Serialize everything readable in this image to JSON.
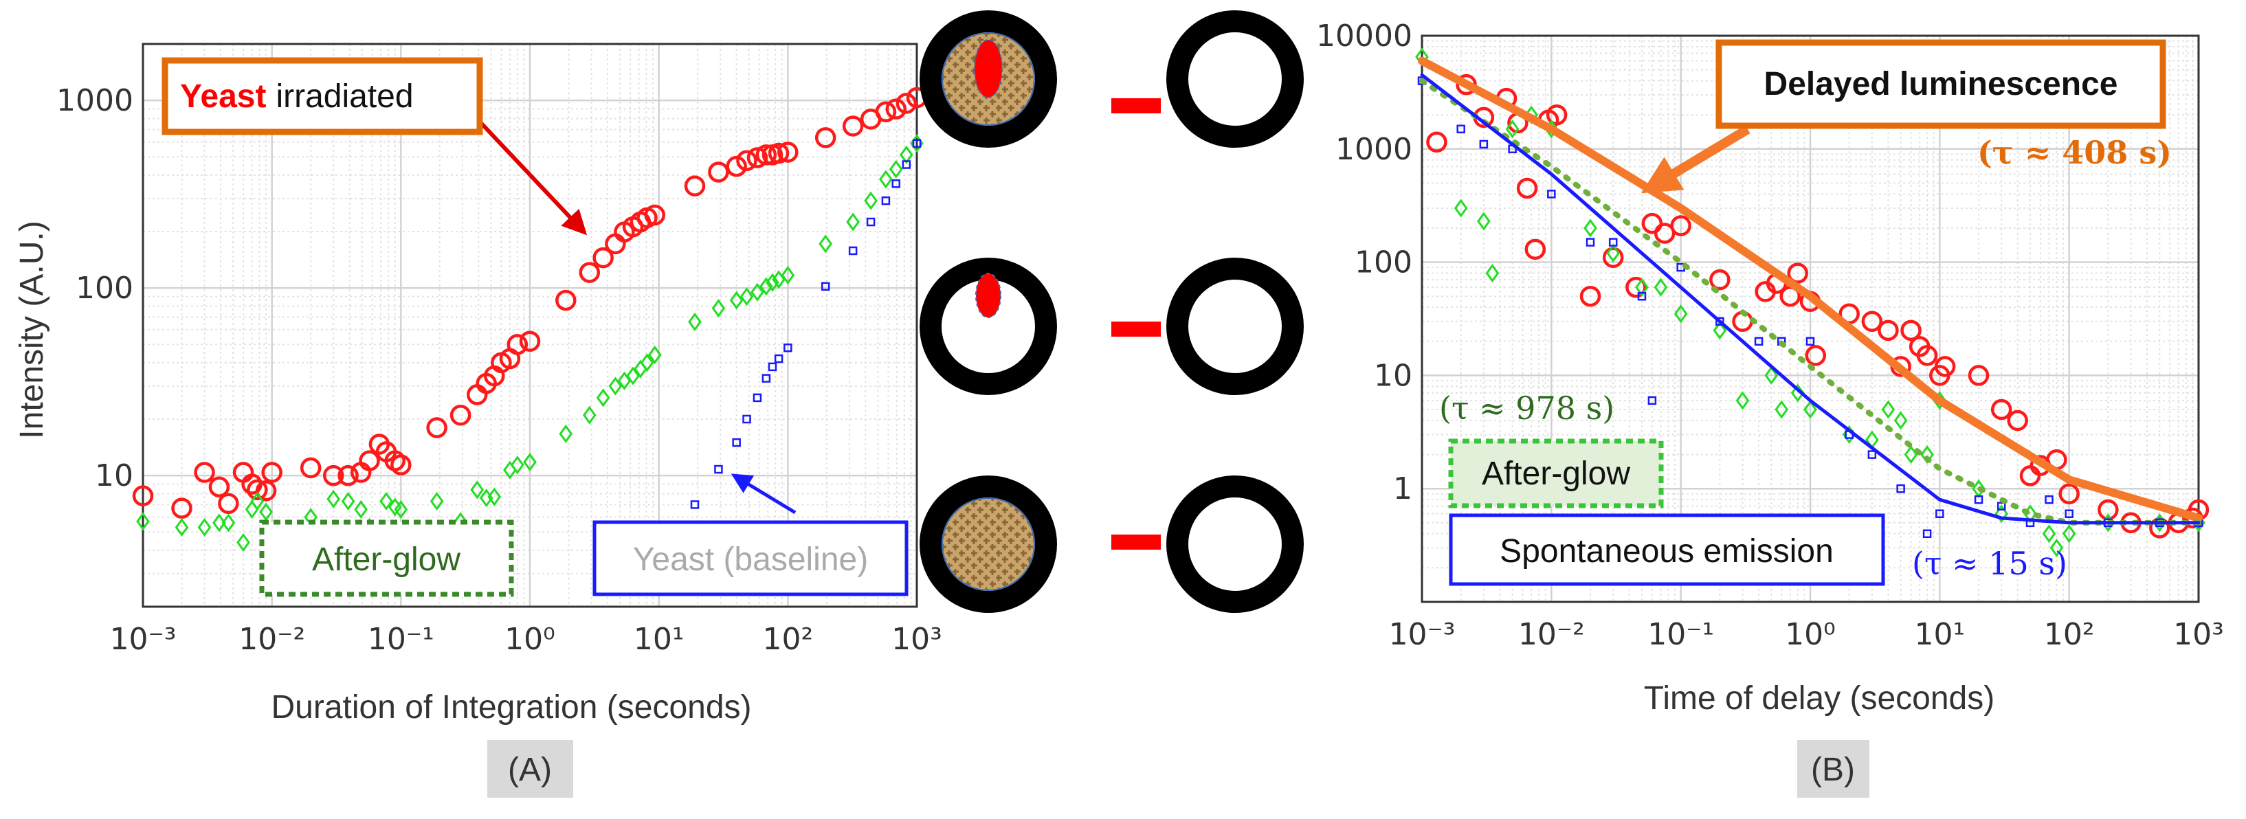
{
  "chart_data": [
    {
      "type": "scatter",
      "ylabel": "Intensity (A.U.)",
      "xlabel": "Duration of Integration (seconds)",
      "panel_label": "(A)",
      "xscale": "log",
      "yscale": "log",
      "grid": true,
      "minor_grid": true,
      "xlim": [
        0.001,
        1000
      ],
      "ylim": [
        2,
        2000
      ],
      "xticks": [
        {
          "value": 0.001,
          "label": "10⁻³"
        },
        {
          "value": 0.01,
          "label": "10⁻²"
        },
        {
          "value": 0.1,
          "label": "10⁻¹"
        },
        {
          "value": 1,
          "label": "10⁰"
        },
        {
          "value": 10,
          "label": "10¹"
        },
        {
          "value": 100,
          "label": "10²"
        },
        {
          "value": 1000,
          "label": "10³"
        }
      ],
      "yticks": [
        10,
        100,
        1000
      ],
      "annotations": {
        "irradiated_bold": "Yeast",
        "irradiated": "irradiated",
        "after_glow": "After-glow",
        "baseline": "Yeast (baseline)"
      },
      "series": [
        {
          "color": "#ff1a1a",
          "marker": "circle",
          "x": [
            0.001,
            0.002,
            0.003,
            0.0039,
            0.0046,
            0.006,
            0.007,
            0.0077,
            0.009,
            0.01,
            0.02,
            0.03,
            0.039,
            0.049,
            0.057,
            0.068,
            0.077,
            0.09,
            0.1,
            0.19,
            0.29,
            0.39,
            0.46,
            0.53,
            0.6,
            0.7,
            0.8,
            1.0,
            1.9,
            2.9,
            3.7,
            4.6,
            5.4,
            6.3,
            7.2,
            8.1,
            9.3,
            19,
            29,
            40,
            48,
            58,
            68,
            76,
            85,
            100,
            196,
            320,
            440,
            575,
            690,
            830,
            1000
          ],
          "values": [
            7.8,
            6.7,
            10.4,
            8.7,
            7.1,
            10.4,
            9,
            8.4,
            8.3,
            10.4,
            11,
            10,
            10,
            10.4,
            12,
            14.7,
            13.4,
            12,
            11.4,
            18,
            21,
            27,
            31,
            34,
            40,
            42,
            50,
            52,
            86,
            121,
            145,
            172,
            199,
            212,
            225,
            237,
            245,
            350,
            415,
            445,
            478,
            495,
            513,
            513,
            523,
            530,
            633,
            730,
            795,
            870,
            900,
            965,
            1035
          ]
        },
        {
          "color": "#22dd22",
          "marker": "diamond",
          "x": [
            0.001,
            0.002,
            0.003,
            0.0039,
            0.0046,
            0.006,
            0.007,
            0.0077,
            0.009,
            0.02,
            0.03,
            0.039,
            0.049,
            0.057,
            0.077,
            0.09,
            0.1,
            0.19,
            0.29,
            0.39,
            0.46,
            0.53,
            0.7,
            0.8,
            1,
            1.9,
            2.9,
            3.7,
            4.6,
            5.4,
            6.3,
            7.2,
            8.1,
            9.3,
            19,
            29,
            40,
            48,
            58,
            68,
            76,
            85,
            100,
            196,
            320,
            440,
            575,
            690,
            830,
            1000
          ],
          "values": [
            5.7,
            5.3,
            5.3,
            5.6,
            5.6,
            4.4,
            6.6,
            7.3,
            6.4,
            6,
            7.5,
            7.3,
            6.6,
            5.3,
            7.3,
            6.8,
            6.6,
            7.3,
            5.7,
            8.4,
            7.6,
            7.7,
            10.7,
            11.4,
            11.8,
            16.7,
            21,
            26,
            30,
            32,
            34,
            37,
            40,
            44,
            66,
            78,
            86,
            90,
            95,
            102,
            107,
            111,
            117,
            172,
            225,
            292,
            380,
            430,
            513,
            590
          ]
        },
        {
          "color": "#1a1aff",
          "marker": "square",
          "x": [
            19,
            29,
            40,
            48,
            58,
            68,
            76,
            85,
            100,
            196,
            320,
            440,
            575,
            690,
            830,
            1000
          ],
          "values": [
            7,
            10.8,
            15,
            20,
            26,
            33,
            38,
            42,
            48,
            102,
            158,
            225,
            292,
            360,
            455,
            590
          ]
        }
      ]
    },
    {
      "type": "scatter",
      "xlabel": "Time of delay (seconds)",
      "panel_label": "(B)",
      "xscale": "log",
      "yscale": "log",
      "grid": true,
      "minor_grid": true,
      "xlim": [
        0.001,
        1000
      ],
      "ylim": [
        0.1,
        10000
      ],
      "xticks": [
        {
          "value": 0.001,
          "label": "10⁻³"
        },
        {
          "value": 0.01,
          "label": "10⁻²"
        },
        {
          "value": 0.1,
          "label": "10⁻¹"
        },
        {
          "value": 1,
          "label": "10⁰"
        },
        {
          "value": 10,
          "label": "10¹"
        },
        {
          "value": 100,
          "label": "10²"
        },
        {
          "value": 1000,
          "label": "10³"
        }
      ],
      "yticks": [
        1,
        10,
        100,
        1000,
        10000
      ],
      "annotations": {
        "delayed": "Delayed luminescence",
        "tau_delayed": "(τ ≈ 408 s)",
        "tau_after": "(τ ≈ 978 s)",
        "after_glow": "After-glow",
        "spontaneous": "Spontaneous emission",
        "tau_spont": "(τ ≈ 15 s)"
      },
      "series": [
        {
          "color": "#ff1a1a",
          "marker": "circle",
          "x": [
            0.0013,
            0.0022,
            0.003,
            0.0045,
            0.0055,
            0.0065,
            0.0075,
            0.0095,
            0.011,
            0.02,
            0.03,
            0.045,
            0.06,
            0.075,
            0.1,
            0.2,
            0.3,
            0.45,
            0.55,
            0.7,
            0.8,
            1.0,
            1.1,
            2,
            3,
            4,
            5,
            6,
            7,
            8,
            10,
            11,
            20,
            30,
            40,
            50,
            60,
            80,
            100,
            200,
            300,
            500,
            700,
            900,
            1000
          ],
          "values": [
            1150,
            3700,
            1900,
            2800,
            1700,
            450,
            130,
            1800,
            2000,
            50,
            110,
            60,
            220,
            180,
            210,
            70,
            30,
            55,
            65,
            50,
            80,
            45,
            15,
            35,
            30,
            25,
            12,
            25,
            18,
            15,
            10,
            12,
            10,
            5,
            4,
            1.3,
            1.6,
            1.8,
            0.9,
            0.65,
            0.5,
            0.45,
            0.5,
            0.55,
            0.65
          ]
        },
        {
          "color": "#22dd22",
          "marker": "diamond",
          "x": [
            0.001,
            0.002,
            0.003,
            0.0035,
            0.005,
            0.007,
            0.01,
            0.02,
            0.03,
            0.05,
            0.07,
            0.1,
            0.2,
            0.3,
            0.5,
            0.6,
            0.8,
            1,
            2,
            3,
            4,
            5,
            6,
            8,
            10,
            20,
            30,
            50,
            70,
            80,
            100,
            200,
            500,
            1000
          ],
          "values": [
            6500,
            300,
            230,
            80,
            1500,
            2000,
            1500,
            200,
            120,
            60,
            60,
            35,
            25,
            6,
            10,
            5,
            7,
            5,
            3,
            2.7,
            5,
            4,
            2,
            2,
            6,
            1,
            0.6,
            0.6,
            0.4,
            0.3,
            0.4,
            0.5,
            0.5,
            0.5
          ]
        },
        {
          "color": "#1a1aff",
          "marker": "square",
          "x": [
            0.001,
            0.002,
            0.003,
            0.005,
            0.01,
            0.02,
            0.03,
            0.05,
            0.06,
            0.1,
            0.2,
            0.4,
            0.6,
            1,
            2,
            3,
            5,
            8,
            10,
            20,
            30,
            50,
            70,
            100,
            200,
            500,
            1000
          ],
          "values": [
            4000,
            1500,
            1100,
            1000,
            400,
            150,
            150,
            50,
            6,
            90,
            30,
            20,
            20,
            20,
            3,
            2,
            1,
            0.4,
            0.6,
            0.8,
            0.7,
            0.5,
            0.8,
            0.6,
            0.5,
            0.5,
            0.5
          ]
        },
        {
          "color": "#f4792b",
          "line": "solid",
          "width": 12,
          "x": [
            0.001,
            0.01,
            0.1,
            1,
            10,
            100,
            1000
          ],
          "values": [
            6000,
            1500,
            300,
            50,
            6,
            1.2,
            0.55
          ]
        },
        {
          "color": "#6fb03a",
          "line": "dotted",
          "width": 8,
          "x": [
            0.001,
            0.01,
            0.1,
            1,
            10,
            50,
            100,
            1000
          ],
          "values": [
            4000,
            700,
            100,
            12,
            1.5,
            0.6,
            0.5,
            0.5
          ]
        },
        {
          "color": "#1a1aff",
          "line": "solid",
          "width": 5,
          "x": [
            0.001,
            0.01,
            0.1,
            1,
            10,
            30,
            100,
            1000
          ],
          "values": [
            4500,
            600,
            60,
            6,
            0.8,
            0.55,
            0.5,
            0.5
          ]
        }
      ]
    }
  ]
}
